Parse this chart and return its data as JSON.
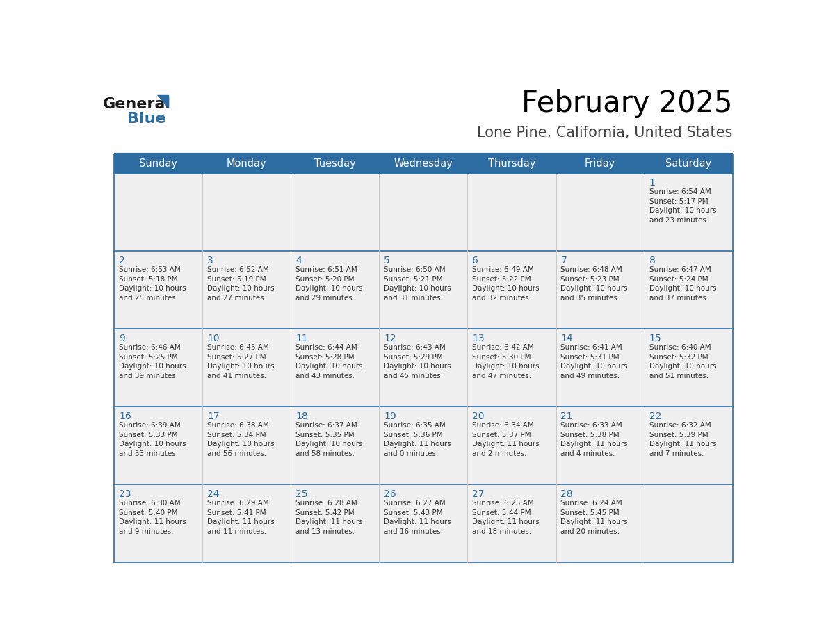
{
  "title": "February 2025",
  "subtitle": "Lone Pine, California, United States",
  "header_bg": "#2e6da4",
  "header_text_color": "#ffffff",
  "cell_bg": "#f0f0f0",
  "cell_bg_white": "#ffffff",
  "border_color": "#2e6da4",
  "sep_color": "#2e6da4",
  "vert_sep_color": "#c8c8c8",
  "day_number_color": "#2e6da4",
  "info_color": "#333333",
  "days_of_week": [
    "Sunday",
    "Monday",
    "Tuesday",
    "Wednesday",
    "Thursday",
    "Friday",
    "Saturday"
  ],
  "weeks": [
    [
      {
        "day": "",
        "info": ""
      },
      {
        "day": "",
        "info": ""
      },
      {
        "day": "",
        "info": ""
      },
      {
        "day": "",
        "info": ""
      },
      {
        "day": "",
        "info": ""
      },
      {
        "day": "",
        "info": ""
      },
      {
        "day": "1",
        "info": "Sunrise: 6:54 AM\nSunset: 5:17 PM\nDaylight: 10 hours\nand 23 minutes."
      }
    ],
    [
      {
        "day": "2",
        "info": "Sunrise: 6:53 AM\nSunset: 5:18 PM\nDaylight: 10 hours\nand 25 minutes."
      },
      {
        "day": "3",
        "info": "Sunrise: 6:52 AM\nSunset: 5:19 PM\nDaylight: 10 hours\nand 27 minutes."
      },
      {
        "day": "4",
        "info": "Sunrise: 6:51 AM\nSunset: 5:20 PM\nDaylight: 10 hours\nand 29 minutes."
      },
      {
        "day": "5",
        "info": "Sunrise: 6:50 AM\nSunset: 5:21 PM\nDaylight: 10 hours\nand 31 minutes."
      },
      {
        "day": "6",
        "info": "Sunrise: 6:49 AM\nSunset: 5:22 PM\nDaylight: 10 hours\nand 32 minutes."
      },
      {
        "day": "7",
        "info": "Sunrise: 6:48 AM\nSunset: 5:23 PM\nDaylight: 10 hours\nand 35 minutes."
      },
      {
        "day": "8",
        "info": "Sunrise: 6:47 AM\nSunset: 5:24 PM\nDaylight: 10 hours\nand 37 minutes."
      }
    ],
    [
      {
        "day": "9",
        "info": "Sunrise: 6:46 AM\nSunset: 5:25 PM\nDaylight: 10 hours\nand 39 minutes."
      },
      {
        "day": "10",
        "info": "Sunrise: 6:45 AM\nSunset: 5:27 PM\nDaylight: 10 hours\nand 41 minutes."
      },
      {
        "day": "11",
        "info": "Sunrise: 6:44 AM\nSunset: 5:28 PM\nDaylight: 10 hours\nand 43 minutes."
      },
      {
        "day": "12",
        "info": "Sunrise: 6:43 AM\nSunset: 5:29 PM\nDaylight: 10 hours\nand 45 minutes."
      },
      {
        "day": "13",
        "info": "Sunrise: 6:42 AM\nSunset: 5:30 PM\nDaylight: 10 hours\nand 47 minutes."
      },
      {
        "day": "14",
        "info": "Sunrise: 6:41 AM\nSunset: 5:31 PM\nDaylight: 10 hours\nand 49 minutes."
      },
      {
        "day": "15",
        "info": "Sunrise: 6:40 AM\nSunset: 5:32 PM\nDaylight: 10 hours\nand 51 minutes."
      }
    ],
    [
      {
        "day": "16",
        "info": "Sunrise: 6:39 AM\nSunset: 5:33 PM\nDaylight: 10 hours\nand 53 minutes."
      },
      {
        "day": "17",
        "info": "Sunrise: 6:38 AM\nSunset: 5:34 PM\nDaylight: 10 hours\nand 56 minutes."
      },
      {
        "day": "18",
        "info": "Sunrise: 6:37 AM\nSunset: 5:35 PM\nDaylight: 10 hours\nand 58 minutes."
      },
      {
        "day": "19",
        "info": "Sunrise: 6:35 AM\nSunset: 5:36 PM\nDaylight: 11 hours\nand 0 minutes."
      },
      {
        "day": "20",
        "info": "Sunrise: 6:34 AM\nSunset: 5:37 PM\nDaylight: 11 hours\nand 2 minutes."
      },
      {
        "day": "21",
        "info": "Sunrise: 6:33 AM\nSunset: 5:38 PM\nDaylight: 11 hours\nand 4 minutes."
      },
      {
        "day": "22",
        "info": "Sunrise: 6:32 AM\nSunset: 5:39 PM\nDaylight: 11 hours\nand 7 minutes."
      }
    ],
    [
      {
        "day": "23",
        "info": "Sunrise: 6:30 AM\nSunset: 5:40 PM\nDaylight: 11 hours\nand 9 minutes."
      },
      {
        "day": "24",
        "info": "Sunrise: 6:29 AM\nSunset: 5:41 PM\nDaylight: 11 hours\nand 11 minutes."
      },
      {
        "day": "25",
        "info": "Sunrise: 6:28 AM\nSunset: 5:42 PM\nDaylight: 11 hours\nand 13 minutes."
      },
      {
        "day": "26",
        "info": "Sunrise: 6:27 AM\nSunset: 5:43 PM\nDaylight: 11 hours\nand 16 minutes."
      },
      {
        "day": "27",
        "info": "Sunrise: 6:25 AM\nSunset: 5:44 PM\nDaylight: 11 hours\nand 18 minutes."
      },
      {
        "day": "28",
        "info": "Sunrise: 6:24 AM\nSunset: 5:45 PM\nDaylight: 11 hours\nand 20 minutes."
      },
      {
        "day": "",
        "info": ""
      }
    ]
  ],
  "logo_text_general": "General",
  "logo_text_blue": "Blue",
  "logo_color_general": "#1a1a1a",
  "logo_color_blue": "#2e6da4",
  "logo_triangle_color": "#2e6da4",
  "fig_width": 11.88,
  "fig_height": 9.18,
  "dpi": 100
}
